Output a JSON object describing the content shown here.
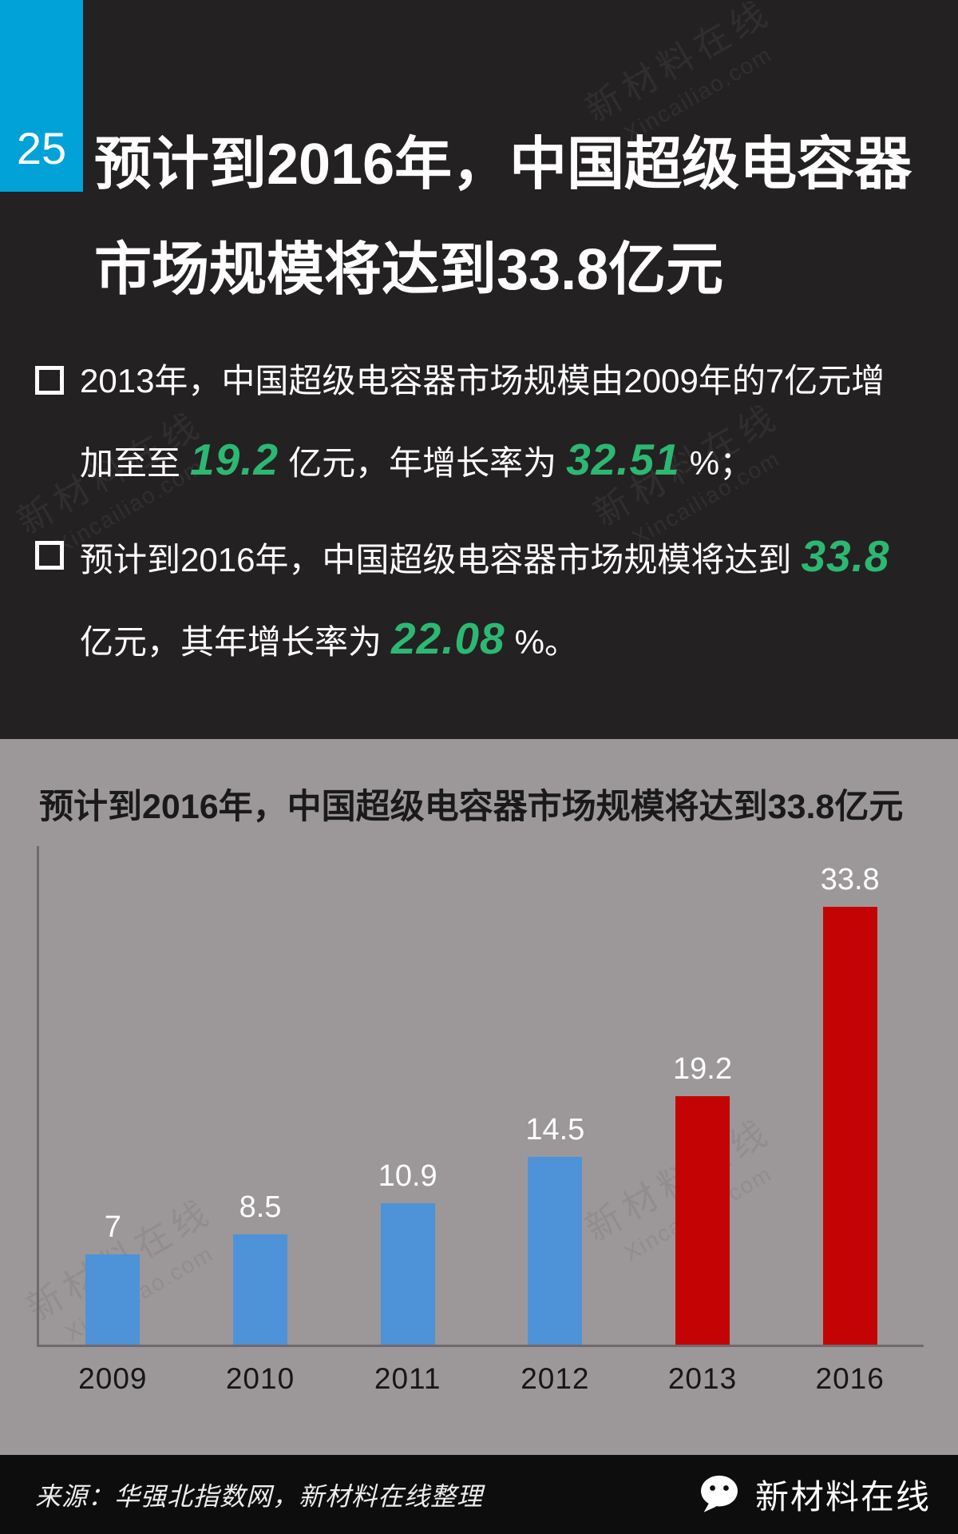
{
  "header": {
    "badge": "25",
    "title_line1": "预计到2016年，中国超级电容器",
    "title_line2": "市场规模将达到33.8亿元"
  },
  "bullets": {
    "b1": {
      "line1": "2013年，中国超级电容器市场规模由2009年的7亿元增",
      "line2_pre": "加至至",
      "line2_num1": "19.2",
      "line2_mid": "亿元，年增长率为",
      "line2_num2": "32.51",
      "line2_end": "%；"
    },
    "b2": {
      "line1_pre": "预计到2016年，中国超级电容器市场规模将达到",
      "line1_num": "33.8",
      "line2_pre": "亿元，其年增长率为",
      "line2_num": "22.08",
      "line2_end": "%。"
    }
  },
  "chart_data": {
    "type": "bar",
    "title": "预计到2016年，中国超级电容器市场规模将达到33.8亿元",
    "categories": [
      "2009",
      "2010",
      "2011",
      "2012",
      "2013",
      "2016"
    ],
    "values": [
      7,
      8.5,
      10.9,
      14.5,
      19.2,
      33.8
    ],
    "unit": "亿元",
    "ylim": [
      0,
      35
    ],
    "grid": false,
    "legend": false,
    "bar_colors": [
      "#4e92d8",
      "#4e92d8",
      "#4e92d8",
      "#4e92d8",
      "#c40404",
      "#c40404"
    ]
  },
  "footer": {
    "source": "来源：华强北指数网，新材料在线整理",
    "brand": "新材料在线"
  },
  "watermark": {
    "cn": "新材料在线",
    "en": "Xincailiao.com"
  },
  "colors": {
    "accent_blue": "#00a2d8",
    "highlight_green": "#2cb873",
    "bar_blue": "#4e92d8",
    "bar_red": "#c40404",
    "panel_gray": "#9c9899",
    "background_dark": "#242122"
  }
}
